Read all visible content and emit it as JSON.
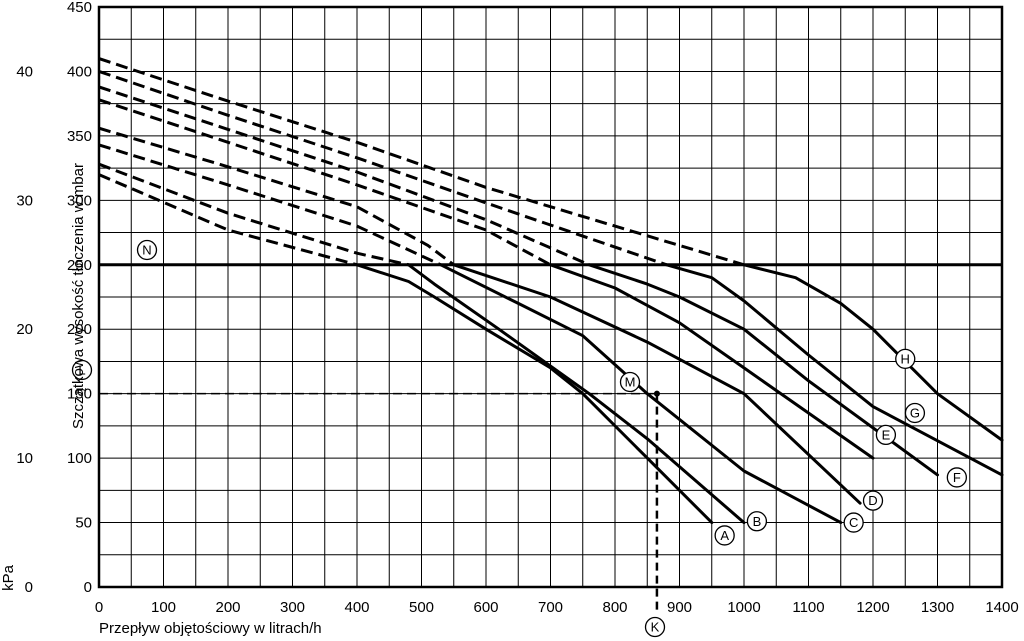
{
  "chart_data": {
    "type": "line",
    "title": "",
    "xlabel": "Przepływ objętościowy w litrach/h",
    "ylabel": "Szczątkowa wysokość tłoczenia w mbar",
    "y2label": "kPa",
    "xlim": [
      0,
      1400
    ],
    "ylim": [
      0,
      450
    ],
    "x_ticks": [
      "0",
      "100",
      "200",
      "300",
      "400",
      "500",
      "600",
      "700",
      "800",
      "900",
      "1000",
      "1100",
      "1200",
      "1300",
      "1400"
    ],
    "y_ticks_mbar": [
      "0",
      "50",
      "100",
      "150",
      "200",
      "250",
      "300",
      "350",
      "400",
      "450"
    ],
    "y_ticks_kpa": [
      "0",
      "10",
      "20",
      "30",
      "40"
    ],
    "grid": true,
    "reference_line": {
      "y": 250
    },
    "operating_point": {
      "x": 865,
      "y": 150
    },
    "series": [
      {
        "label": "A",
        "dashed": [
          [
            0,
            320
          ],
          [
            200,
            277
          ],
          [
            400,
            250
          ]
        ],
        "solid": [
          [
            400,
            250
          ],
          [
            480,
            237
          ],
          [
            520,
            225
          ],
          [
            600,
            200
          ],
          [
            700,
            170
          ],
          [
            750,
            150
          ],
          [
            850,
            100
          ],
          [
            950,
            50
          ]
        ],
        "label_at": [
          970,
          40
        ]
      },
      {
        "label": "B",
        "dashed": [
          [
            0,
            328
          ],
          [
            200,
            290
          ],
          [
            400,
            259
          ],
          [
            480,
            250
          ]
        ],
        "solid": [
          [
            480,
            250
          ],
          [
            520,
            235
          ],
          [
            620,
            200
          ],
          [
            760,
            150
          ],
          [
            850,
            115
          ],
          [
            1000,
            50
          ]
        ],
        "label_at": [
          1020,
          51
        ]
      },
      {
        "label": "C",
        "dashed": [
          [
            0,
            343
          ],
          [
            200,
            312
          ],
          [
            400,
            280
          ],
          [
            530,
            250
          ]
        ],
        "solid": [
          [
            530,
            250
          ],
          [
            650,
            220
          ],
          [
            750,
            195
          ],
          [
            850,
            150
          ],
          [
            1000,
            90
          ],
          [
            1150,
            50
          ]
        ],
        "label_at": [
          1170,
          50
        ]
      },
      {
        "label": "D",
        "dashed": [
          [
            0,
            356
          ],
          [
            200,
            326
          ],
          [
            400,
            295
          ],
          [
            510,
            265
          ],
          [
            550,
            250
          ]
        ],
        "solid": [
          [
            550,
            250
          ],
          [
            700,
            225
          ],
          [
            850,
            190
          ],
          [
            1000,
            150
          ],
          [
            1180,
            65
          ]
        ],
        "label_at": [
          1200,
          67
        ]
      },
      {
        "label": "E",
        "dashed": [
          [
            0,
            378
          ],
          [
            200,
            345
          ],
          [
            400,
            312
          ],
          [
            600,
            277
          ],
          [
            700,
            250
          ]
        ],
        "solid": [
          [
            700,
            250
          ],
          [
            800,
            232
          ],
          [
            900,
            205
          ],
          [
            1000,
            170
          ],
          [
            1200,
            100
          ]
        ],
        "label_at": [
          1220,
          118
        ]
      },
      {
        "label": "F",
        "dashed": [
          [
            0,
            388
          ],
          [
            200,
            355
          ],
          [
            400,
            322
          ],
          [
            600,
            285
          ],
          [
            760,
            250
          ]
        ],
        "solid": [
          [
            760,
            250
          ],
          [
            850,
            235
          ],
          [
            900,
            225
          ],
          [
            1000,
            200
          ],
          [
            1100,
            160
          ],
          [
            1300,
            87
          ]
        ],
        "label_at": [
          1330,
          85
        ]
      },
      {
        "label": "G",
        "dashed": [
          [
            0,
            400
          ],
          [
            200,
            366
          ],
          [
            400,
            333
          ],
          [
            600,
            298
          ],
          [
            880,
            250
          ]
        ],
        "solid": [
          [
            880,
            250
          ],
          [
            950,
            240
          ],
          [
            1000,
            222
          ],
          [
            1100,
            180
          ],
          [
            1200,
            140
          ],
          [
            1400,
            87
          ]
        ],
        "label_at": [
          1265,
          135
        ]
      },
      {
        "label": "H",
        "dashed": [
          [
            0,
            410
          ],
          [
            200,
            377
          ],
          [
            400,
            345
          ],
          [
            600,
            310
          ],
          [
            1000,
            250
          ]
        ],
        "solid": [
          [
            1000,
            250
          ],
          [
            1080,
            240
          ],
          [
            1150,
            220
          ],
          [
            1200,
            200
          ],
          [
            1260,
            170
          ],
          [
            1300,
            150
          ],
          [
            1400,
            114
          ]
        ],
        "label_at": [
          1250,
          177
        ]
      }
    ],
    "callouts": {
      "K": "K",
      "L": "L",
      "M": "M",
      "N": "N"
    }
  }
}
